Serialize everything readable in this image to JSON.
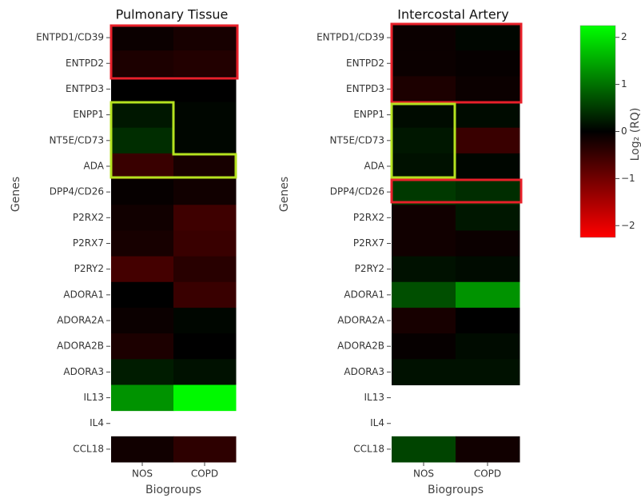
{
  "chart_data": [
    {
      "type": "heatmap",
      "title": "Pulmonary Tissue",
      "x_label": "Biogroups",
      "y_label": "Genes",
      "x": [
        "NOS",
        "COPD"
      ],
      "y": [
        "ENTPD1/CD39",
        "ENTPD2",
        "ENTPD3",
        "ENPP1",
        "NT5E/CD73",
        "ADA",
        "DPP4/CD26",
        "P2RX2",
        "P2RX7",
        "P2RY2",
        "ADORA1",
        "ADORA2A",
        "ADORA2B",
        "ADORA3",
        "IL13",
        "IL4",
        "CCL18"
      ],
      "z": [
        [
          -0.1,
          -0.2
        ],
        [
          -0.25,
          -0.3
        ],
        [
          0,
          0
        ],
        [
          0.2,
          0.05
        ],
        [
          0.4,
          0.05
        ],
        [
          -0.5,
          -0.2
        ],
        [
          -0.05,
          -0.15
        ],
        [
          -0.15,
          -0.55
        ],
        [
          -0.2,
          -0.5
        ],
        [
          -0.6,
          -0.35
        ],
        [
          0,
          -0.5
        ],
        [
          -0.1,
          0.05
        ],
        [
          -0.25,
          0
        ],
        [
          0.25,
          0.15
        ],
        [
          1.3,
          2.2
        ],
        [
          null,
          null
        ],
        [
          -0.15,
          -0.4
        ]
      ]
    },
    {
      "type": "heatmap",
      "title": "Intercostal Artery",
      "x_label": "Biogroups",
      "y_label": "Genes",
      "x": [
        "NOS",
        "COPD"
      ],
      "y": [
        "ENTPD1/CD39",
        "ENTPD2",
        "ENTPD3",
        "ENPP1",
        "NT5E/CD73",
        "ADA",
        "DPP4/CD26",
        "P2RX2",
        "P2RX7",
        "P2RY2",
        "ADORA1",
        "ADORA2A",
        "ADORA2B",
        "ADORA3",
        "IL13",
        "IL4",
        "CCL18"
      ],
      "z": [
        [
          -0.1,
          0.05
        ],
        [
          -0.1,
          -0.05
        ],
        [
          -0.25,
          -0.1
        ],
        [
          0.1,
          0.1
        ],
        [
          0.2,
          -0.5
        ],
        [
          0.15,
          0.05
        ],
        [
          0.5,
          0.4
        ],
        [
          -0.15,
          0.2
        ],
        [
          -0.15,
          -0.1
        ],
        [
          0.15,
          0.1
        ],
        [
          0.7,
          1.3
        ],
        [
          -0.2,
          0
        ],
        [
          -0.05,
          0.1
        ],
        [
          0.15,
          0.15
        ],
        [
          null,
          null
        ],
        [
          null,
          null
        ],
        [
          0.6,
          -0.15
        ]
      ],
      "colorbar": {
        "title": "Log₂ (RQ)",
        "zlim": [
          -2.25,
          2.25
        ],
        "zticks": [
          {
            "value": -2,
            "label": "−2"
          },
          {
            "value": -1,
            "label": "−1"
          },
          0,
          1,
          2
        ],
        "colors": {
          "low": "#ff0000",
          "mid": "#000000",
          "high": "#00ff00"
        }
      }
    }
  ]
}
